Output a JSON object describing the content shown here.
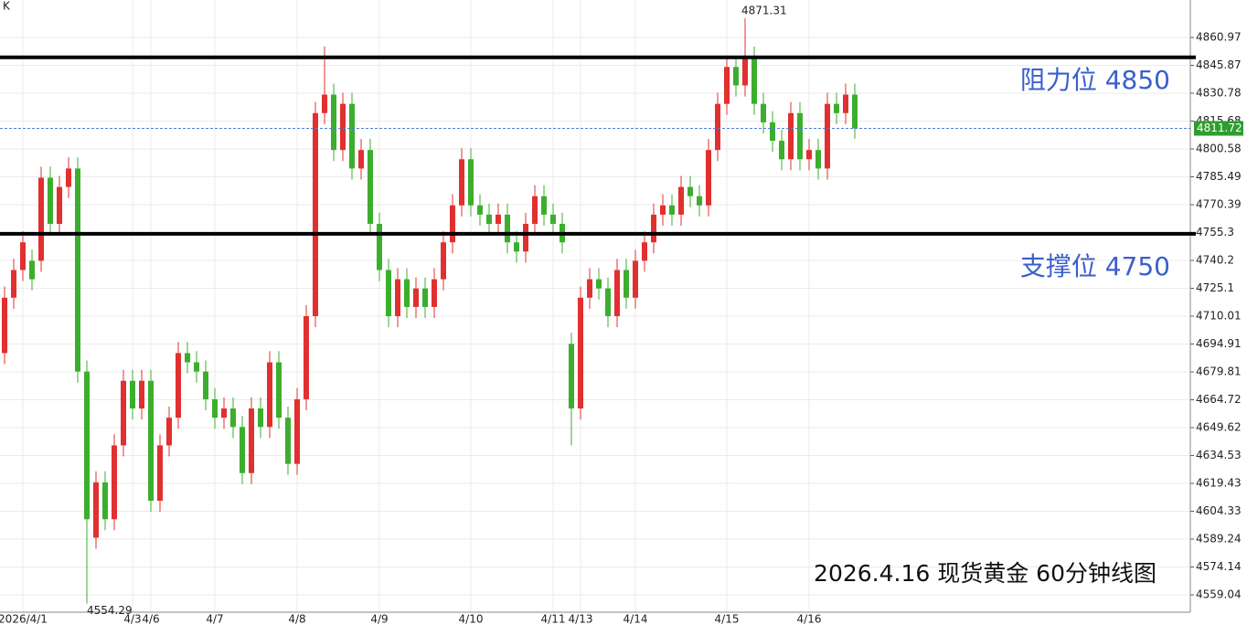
{
  "chart_data": {
    "type": "candlestick",
    "corner_label": "K",
    "title": "2026.4.16 现货黄金 60分钟线图",
    "up_color": "#e0302f",
    "down_color": "#3cae2e",
    "grid": true,
    "ylim": [
      4549.64,
      4881.26
    ],
    "yticks": [
      4860.97,
      4845.87,
      4830.78,
      4815.68,
      4800.58,
      4785.49,
      4770.39,
      4755.3,
      4740.2,
      4725.1,
      4710.01,
      4694.91,
      4679.81,
      4664.72,
      4649.62,
      4634.53,
      4619.43,
      4604.33,
      4589.24,
      4574.14,
      4559.04
    ],
    "categories": [
      null,
      null,
      "2026/4/1",
      null,
      null,
      null,
      null,
      null,
      null,
      null,
      null,
      null,
      null,
      null,
      "4/3",
      null,
      "4/6",
      null,
      null,
      null,
      null,
      null,
      null,
      "4/7",
      null,
      null,
      null,
      null,
      null,
      null,
      null,
      null,
      "4/8",
      null,
      null,
      null,
      null,
      null,
      null,
      null,
      null,
      "4/9",
      null,
      null,
      null,
      null,
      null,
      null,
      null,
      null,
      null,
      "4/10",
      null,
      null,
      null,
      null,
      null,
      null,
      null,
      null,
      "4/11",
      null,
      null,
      "4/13",
      null,
      null,
      null,
      null,
      null,
      "4/14",
      null,
      null,
      null,
      null,
      null,
      null,
      null,
      null,
      null,
      "4/15",
      null,
      null,
      null,
      null,
      null,
      null,
      null,
      null,
      "4/16",
      null,
      null,
      null,
      null,
      null
    ],
    "open": [
      4690,
      4720,
      4735,
      4740,
      4740,
      4785,
      4760,
      4780,
      4790,
      4680,
      4590,
      4620,
      4600,
      4640,
      4675,
      4660,
      4675,
      4610,
      4640,
      4655,
      4690,
      4685,
      4680,
      4665,
      4655,
      4660,
      4650,
      4625,
      4660,
      4650,
      4685,
      4655,
      4630,
      4665,
      4710,
      4820,
      4830,
      4800,
      4825,
      4790,
      4800,
      4760,
      4735,
      4710,
      4730,
      4715,
      4725,
      4715,
      4730,
      4750,
      4770,
      4795,
      4770,
      4765,
      4760,
      4765,
      4750,
      4745,
      4760,
      4775,
      4765,
      4760,
      4695,
      4660,
      4720,
      4730,
      4725,
      4710,
      4735,
      4720,
      4740,
      4750,
      4765,
      4770,
      4765,
      4780,
      4775,
      4770,
      4800,
      4825,
      4845,
      4835,
      4850,
      4825,
      4815,
      4805,
      4795,
      4820,
      4795,
      4800,
      4790,
      4825,
      4820,
      4830
    ],
    "high": [
      4726,
      4741,
      4756,
      4746,
      4791,
      4791,
      4786,
      4796,
      4796,
      4686,
      4626,
      4626,
      4646,
      4681,
      4681,
      4681,
      4681,
      4646,
      4661,
      4696,
      4696,
      4691,
      4686,
      4671,
      4666,
      4666,
      4656,
      4666,
      4666,
      4691,
      4691,
      4661,
      4671,
      4716,
      4826,
      4856,
      4836,
      4831,
      4831,
      4806,
      4806,
      4766,
      4741,
      4736,
      4736,
      4731,
      4731,
      4736,
      4756,
      4776,
      4801,
      4801,
      4776,
      4771,
      4771,
      4771,
      4756,
      4766,
      4781,
      4781,
      4771,
      4766,
      4701,
      4726,
      4736,
      4736,
      4731,
      4741,
      4741,
      4746,
      4756,
      4771,
      4776,
      4776,
      4786,
      4786,
      4781,
      4806,
      4831,
      4851,
      4851,
      4871.31,
      4856,
      4831,
      4821,
      4811,
      4826,
      4826,
      4806,
      4806,
      4831,
      4831,
      4836,
      4836
    ],
    "low": [
      4684,
      4714,
      4729,
      4724,
      4734,
      4754,
      4754,
      4774,
      4674,
      4554.29,
      4584,
      4594,
      4594,
      4634,
      4654,
      4654,
      4604,
      4604,
      4634,
      4649,
      4679,
      4674,
      4659,
      4649,
      4649,
      4644,
      4619,
      4619,
      4644,
      4644,
      4649,
      4624,
      4624,
      4659,
      4704,
      4814,
      4794,
      4794,
      4784,
      4784,
      4754,
      4729,
      4704,
      4704,
      4709,
      4709,
      4709,
      4709,
      4724,
      4744,
      4764,
      4764,
      4759,
      4754,
      4754,
      4744,
      4739,
      4739,
      4754,
      4759,
      4754,
      4744,
      4640,
      4654,
      4714,
      4719,
      4704,
      4704,
      4714,
      4714,
      4734,
      4744,
      4759,
      4759,
      4759,
      4769,
      4764,
      4764,
      4794,
      4819,
      4829,
      4829,
      4819,
      4809,
      4799,
      4789,
      4789,
      4789,
      4789,
      4784,
      4784,
      4814,
      4814,
      4806
    ],
    "close": [
      4720,
      4735,
      4750,
      4730,
      4785,
      4760,
      4780,
      4790,
      4680,
      4600,
      4620,
      4600,
      4640,
      4675,
      4660,
      4675,
      4610,
      4640,
      4655,
      4690,
      4685,
      4680,
      4665,
      4655,
      4660,
      4650,
      4625,
      4660,
      4650,
      4685,
      4655,
      4630,
      4665,
      4710,
      4820,
      4830,
      4800,
      4825,
      4790,
      4800,
      4760,
      4735,
      4710,
      4730,
      4715,
      4725,
      4715,
      4730,
      4750,
      4770,
      4795,
      4770,
      4765,
      4760,
      4765,
      4750,
      4745,
      4760,
      4775,
      4765,
      4760,
      4750,
      4660,
      4720,
      4730,
      4725,
      4710,
      4735,
      4720,
      4740,
      4750,
      4765,
      4770,
      4765,
      4780,
      4775,
      4770,
      4800,
      4825,
      4845,
      4835,
      4850,
      4825,
      4815,
      4805,
      4795,
      4820,
      4795,
      4800,
      4790,
      4825,
      4820,
      4830,
      4811.72
    ],
    "levels": [
      {
        "value": 4850.2,
        "label": "阻力位 4850"
      },
      {
        "value": 4754.6,
        "label": "支撑位 4750"
      }
    ]
  }
}
